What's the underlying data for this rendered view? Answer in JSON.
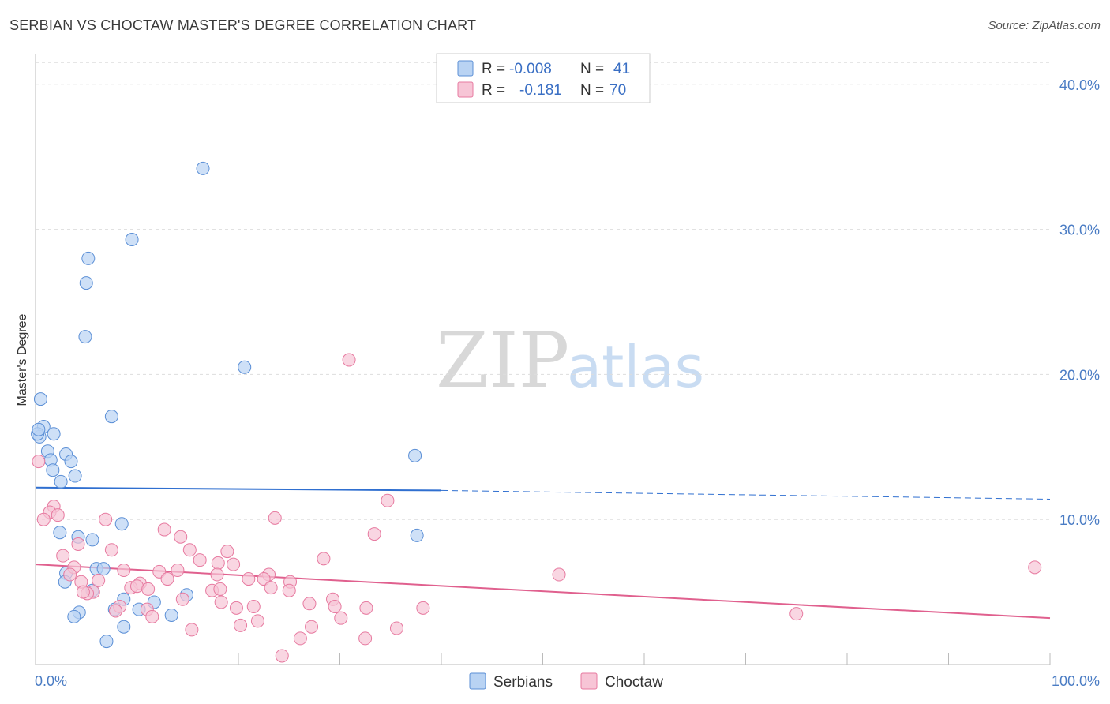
{
  "title": "SERBIAN VS CHOCTAW MASTER'S DEGREE CORRELATION CHART",
  "source": "Source: ZipAtlas.com",
  "watermark": {
    "zip": "ZIP",
    "atlas": "atlas"
  },
  "legend": {
    "rows": [
      {
        "r_label": "R =",
        "r_value": "-0.008",
        "n_label": "N =",
        "n_value": "41"
      },
      {
        "r_label": "R =",
        "r_value": "-0.181",
        "n_label": "N =",
        "n_value": "70"
      }
    ]
  },
  "chart_data": {
    "type": "scatter",
    "title": "SERBIAN VS CHOCTAW MASTER'S DEGREE CORRELATION CHART",
    "xlabel": "",
    "ylabel": "Master's Degree",
    "xlim": [
      0,
      100
    ],
    "ylim": [
      0,
      42
    ],
    "x_tick_labels": [
      "0.0%",
      "100.0%"
    ],
    "y_ticks": [
      10,
      20,
      30,
      40
    ],
    "y_tick_labels": [
      "10.0%",
      "20.0%",
      "30.0%",
      "40.0%"
    ],
    "grid": true,
    "colors": {
      "serbians": "#5b8fd6",
      "serbians_fill": "#b9d3f3",
      "choctaw": "#e77aa0",
      "choctaw_fill": "#f7c5d6",
      "tick": "#4a7cc4"
    },
    "series": [
      {
        "name": "Serbians",
        "trend": {
          "x0": 0,
          "y0": 12.2,
          "x1": 40,
          "y1": 12.0,
          "dash_to_x": 100,
          "dash_to_y": 11.4
        },
        "points": [
          [
            16.5,
            34.2
          ],
          [
            9.5,
            29.3
          ],
          [
            5.2,
            28.0
          ],
          [
            5.0,
            26.3
          ],
          [
            4.9,
            22.6
          ],
          [
            20.6,
            20.5
          ],
          [
            0.5,
            18.3
          ],
          [
            7.5,
            17.1
          ],
          [
            0.8,
            16.4
          ],
          [
            0.4,
            15.7
          ],
          [
            1.8,
            15.9
          ],
          [
            1.2,
            14.7
          ],
          [
            1.5,
            14.1
          ],
          [
            3.0,
            14.5
          ],
          [
            3.5,
            14.0
          ],
          [
            1.7,
            13.4
          ],
          [
            3.9,
            13.0
          ],
          [
            2.5,
            12.6
          ],
          [
            37.4,
            14.4
          ],
          [
            8.5,
            9.7
          ],
          [
            2.4,
            9.1
          ],
          [
            4.2,
            8.8
          ],
          [
            5.6,
            8.6
          ],
          [
            37.6,
            8.9
          ],
          [
            6.0,
            6.6
          ],
          [
            6.7,
            6.6
          ],
          [
            3.0,
            6.3
          ],
          [
            2.9,
            5.7
          ],
          [
            5.6,
            5.1
          ],
          [
            14.9,
            4.8
          ],
          [
            8.7,
            4.5
          ],
          [
            11.7,
            4.3
          ],
          [
            7.8,
            3.8
          ],
          [
            10.2,
            3.8
          ],
          [
            4.3,
            3.6
          ],
          [
            3.8,
            3.3
          ],
          [
            13.4,
            3.4
          ],
          [
            8.7,
            2.6
          ],
          [
            7.0,
            1.6
          ],
          [
            0.2,
            15.9
          ],
          [
            0.3,
            16.2
          ]
        ]
      },
      {
        "name": "Choctaw",
        "trend": {
          "x0": 0,
          "y0": 6.9,
          "x1": 100,
          "y1": 3.2
        },
        "points": [
          [
            0.3,
            14.0
          ],
          [
            30.9,
            21.0
          ],
          [
            34.7,
            11.3
          ],
          [
            1.8,
            10.9
          ],
          [
            1.4,
            10.5
          ],
          [
            0.8,
            10.0
          ],
          [
            2.2,
            10.3
          ],
          [
            6.9,
            10.0
          ],
          [
            23.6,
            10.1
          ],
          [
            12.7,
            9.3
          ],
          [
            33.4,
            9.0
          ],
          [
            14.3,
            8.8
          ],
          [
            4.2,
            8.3
          ],
          [
            7.5,
            7.9
          ],
          [
            15.2,
            7.9
          ],
          [
            18.9,
            7.8
          ],
          [
            2.7,
            7.5
          ],
          [
            16.2,
            7.2
          ],
          [
            28.4,
            7.3
          ],
          [
            18.0,
            7.0
          ],
          [
            19.5,
            6.9
          ],
          [
            3.8,
            6.7
          ],
          [
            12.2,
            6.4
          ],
          [
            14.0,
            6.5
          ],
          [
            8.7,
            6.5
          ],
          [
            17.9,
            6.2
          ],
          [
            23.0,
            6.2
          ],
          [
            51.6,
            6.2
          ],
          [
            98.5,
            6.7
          ],
          [
            22.5,
            5.9
          ],
          [
            4.5,
            5.7
          ],
          [
            6.2,
            5.8
          ],
          [
            10.3,
            5.6
          ],
          [
            13.0,
            5.9
          ],
          [
            21.0,
            5.9
          ],
          [
            25.1,
            5.7
          ],
          [
            9.4,
            5.3
          ],
          [
            10.0,
            5.4
          ],
          [
            11.1,
            5.2
          ],
          [
            17.4,
            5.1
          ],
          [
            18.2,
            5.2
          ],
          [
            23.2,
            5.3
          ],
          [
            25.0,
            5.1
          ],
          [
            5.7,
            5.0
          ],
          [
            5.1,
            4.9
          ],
          [
            14.5,
            4.5
          ],
          [
            29.3,
            4.5
          ],
          [
            18.3,
            4.3
          ],
          [
            27.0,
            4.2
          ],
          [
            29.5,
            4.0
          ],
          [
            8.3,
            4.0
          ],
          [
            11.0,
            3.8
          ],
          [
            19.8,
            3.9
          ],
          [
            21.5,
            4.0
          ],
          [
            32.6,
            3.9
          ],
          [
            38.2,
            3.9
          ],
          [
            7.9,
            3.7
          ],
          [
            75.0,
            3.5
          ],
          [
            11.5,
            3.3
          ],
          [
            30.1,
            3.2
          ],
          [
            21.9,
            3.0
          ],
          [
            20.2,
            2.7
          ],
          [
            27.2,
            2.6
          ],
          [
            35.6,
            2.5
          ],
          [
            15.4,
            2.4
          ],
          [
            26.1,
            1.8
          ],
          [
            32.5,
            1.8
          ],
          [
            24.3,
            0.6
          ],
          [
            3.4,
            6.2
          ],
          [
            4.7,
            5.0
          ]
        ]
      }
    ]
  },
  "bottom_legend": {
    "serbians": "Serbians",
    "choctaw": "Choctaw"
  }
}
